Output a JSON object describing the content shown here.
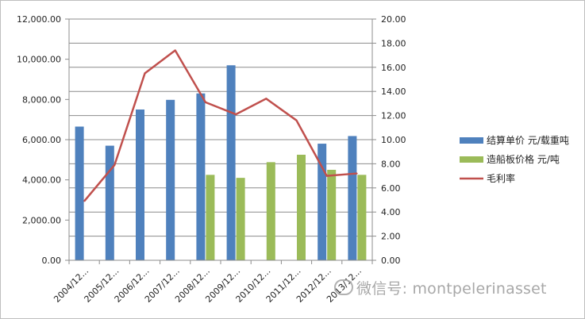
{
  "chart_data": {
    "type": "bar",
    "categories": [
      "2004/12...",
      "2005/12...",
      "2006/12...",
      "2007/12...",
      "2008/12...",
      "2009/12...",
      "2010/12...",
      "2011/12...",
      "2012/12...",
      "2013/12..."
    ],
    "series": [
      {
        "name": "结算单价 元/载重吨",
        "type": "bar",
        "axis": "left",
        "color": "#4f81bd",
        "values": [
          6650,
          5700,
          7500,
          7980,
          8300,
          9700,
          null,
          null,
          5800,
          6180
        ]
      },
      {
        "name": "造船板价格 元/吨",
        "type": "bar",
        "axis": "left",
        "color": "#9bbb59",
        "values": [
          null,
          null,
          null,
          null,
          4250,
          4100,
          4880,
          5250,
          4500,
          4250
        ]
      },
      {
        "name": "毛利率",
        "type": "line",
        "axis": "right",
        "color": "#c0504d",
        "values": [
          4.9,
          7.9,
          15.5,
          17.4,
          13.1,
          12.1,
          13.4,
          11.6,
          7.0,
          7.2
        ]
      }
    ],
    "left_axis": {
      "min": 0,
      "max": 12000,
      "step": 2000,
      "ticks": [
        "0.00",
        "2,000.00",
        "4,000.00",
        "6,000.00",
        "8,000.00",
        "10,000.00",
        "12,000.00"
      ]
    },
    "right_axis": {
      "min": 0,
      "max": 20,
      "step": 2,
      "ticks": [
        "0.00",
        "2.00",
        "4.00",
        "6.00",
        "8.00",
        "10.00",
        "12.00",
        "14.00",
        "16.00",
        "18.00",
        "20.00"
      ]
    },
    "grid": true,
    "legend_position": "right"
  },
  "watermark": {
    "text": "微信号: montpelerinasset"
  }
}
